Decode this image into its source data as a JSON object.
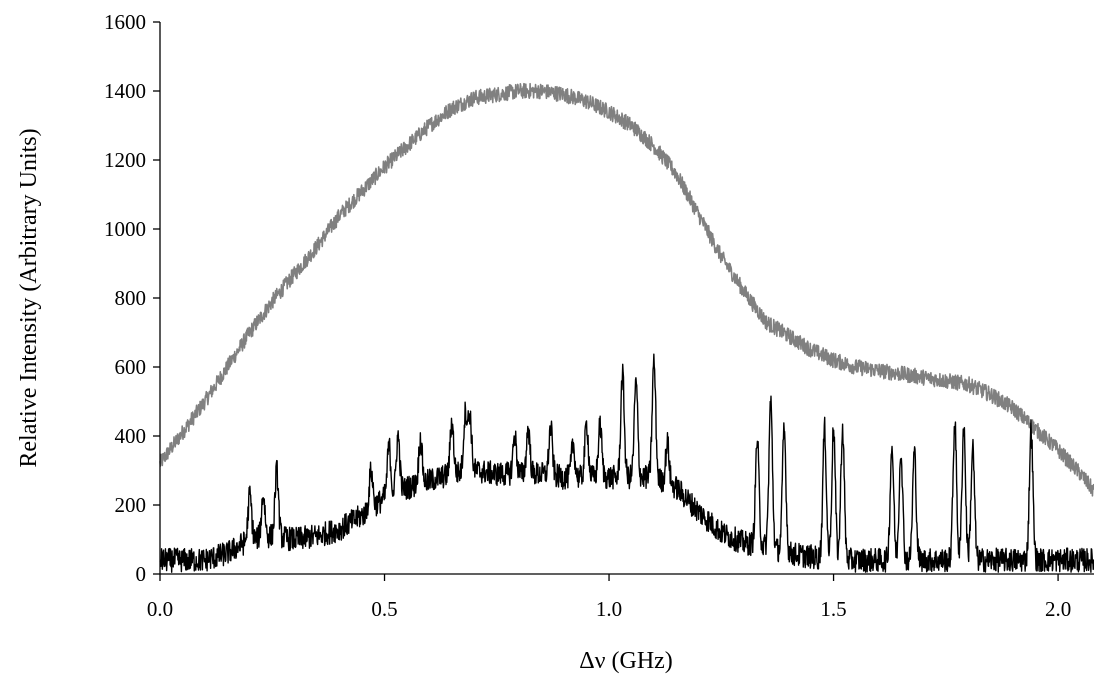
{
  "chart_data": {
    "type": "line",
    "title": "",
    "xlabel": "Δν (GHz)",
    "ylabel": "Relative Intensity (Arbitrary Units)",
    "xlim": [
      0,
      2.08
    ],
    "ylim": [
      0,
      1600
    ],
    "xticks": [
      "0.0",
      "0.5",
      "1.0",
      "1.5",
      "2.0"
    ],
    "xtick_values": [
      0,
      0.5,
      1.0,
      1.5,
      2.0
    ],
    "yticks": [
      "0",
      "200",
      "400",
      "600",
      "800",
      "1000",
      "1200",
      "1400",
      "1600"
    ],
    "ytick_values": [
      0,
      200,
      400,
      600,
      800,
      1000,
      1200,
      1400,
      1600
    ],
    "grid": false,
    "legend": "none",
    "series": [
      {
        "color": "#808080",
        "x": [
          0.0,
          0.05,
          0.1,
          0.15,
          0.2,
          0.25,
          0.3,
          0.35,
          0.4,
          0.45,
          0.5,
          0.55,
          0.6,
          0.65,
          0.7,
          0.75,
          0.8,
          0.85,
          0.9,
          0.95,
          1.0,
          1.05,
          1.1,
          1.15,
          1.2,
          1.25,
          1.3,
          1.35,
          1.4,
          1.45,
          1.5,
          1.55,
          1.6,
          1.65,
          1.7,
          1.75,
          1.8,
          1.85,
          1.9,
          1.95,
          2.0,
          2.05,
          2.08
        ],
        "y": [
          320,
          410,
          500,
          600,
          700,
          790,
          870,
          950,
          1040,
          1110,
          1180,
          1240,
          1300,
          1350,
          1380,
          1390,
          1400,
          1400,
          1390,
          1370,
          1340,
          1300,
          1240,
          1160,
          1040,
          920,
          820,
          730,
          690,
          650,
          620,
          600,
          590,
          580,
          570,
          560,
          550,
          520,
          480,
          420,
          360,
          290,
          240
        ]
      },
      {
        "color": "#000000",
        "x": [
          0.0,
          0.05,
          0.1,
          0.15,
          0.2,
          0.25,
          0.3,
          0.35,
          0.4,
          0.45,
          0.5,
          0.55,
          0.6,
          0.65,
          0.7,
          0.75,
          0.8,
          0.85,
          0.9,
          0.95,
          1.0,
          1.05,
          1.1,
          1.15,
          1.2,
          1.25,
          1.3,
          1.35,
          1.4,
          1.45,
          1.5,
          1.55,
          1.6,
          1.65,
          1.7,
          1.75,
          1.8,
          1.85,
          1.9,
          1.95,
          2.0,
          2.05,
          2.08
        ],
        "y": [
          40,
          40,
          40,
          60,
          100,
          110,
          100,
          110,
          130,
          170,
          220,
          250,
          270,
          290,
          300,
          290,
          290,
          290,
          280,
          280,
          280,
          280,
          280,
          250,
          180,
          120,
          90,
          80,
          60,
          50,
          40,
          40,
          40,
          40,
          40,
          40,
          40,
          40,
          40,
          40,
          40,
          40,
          40
        ],
        "peaks": [
          {
            "x": 0.2,
            "y": 230
          },
          {
            "x": 0.23,
            "y": 230
          },
          {
            "x": 0.26,
            "y": 300
          },
          {
            "x": 0.47,
            "y": 300
          },
          {
            "x": 0.51,
            "y": 370
          },
          {
            "x": 0.53,
            "y": 400
          },
          {
            "x": 0.58,
            "y": 390
          },
          {
            "x": 0.65,
            "y": 440
          },
          {
            "x": 0.68,
            "y": 465
          },
          {
            "x": 0.69,
            "y": 460
          },
          {
            "x": 0.79,
            "y": 400
          },
          {
            "x": 0.82,
            "y": 420
          },
          {
            "x": 0.87,
            "y": 425
          },
          {
            "x": 0.92,
            "y": 375
          },
          {
            "x": 0.95,
            "y": 435
          },
          {
            "x": 0.98,
            "y": 430
          },
          {
            "x": 1.03,
            "y": 580
          },
          {
            "x": 1.06,
            "y": 555
          },
          {
            "x": 1.1,
            "y": 615
          },
          {
            "x": 1.13,
            "y": 380
          },
          {
            "x": 1.33,
            "y": 390
          },
          {
            "x": 1.36,
            "y": 500
          },
          {
            "x": 1.39,
            "y": 420
          },
          {
            "x": 1.48,
            "y": 420
          },
          {
            "x": 1.5,
            "y": 420
          },
          {
            "x": 1.52,
            "y": 420
          },
          {
            "x": 1.63,
            "y": 370
          },
          {
            "x": 1.65,
            "y": 360
          },
          {
            "x": 1.68,
            "y": 355
          },
          {
            "x": 1.77,
            "y": 440
          },
          {
            "x": 1.79,
            "y": 430
          },
          {
            "x": 1.81,
            "y": 365
          },
          {
            "x": 1.94,
            "y": 420
          }
        ]
      }
    ]
  }
}
